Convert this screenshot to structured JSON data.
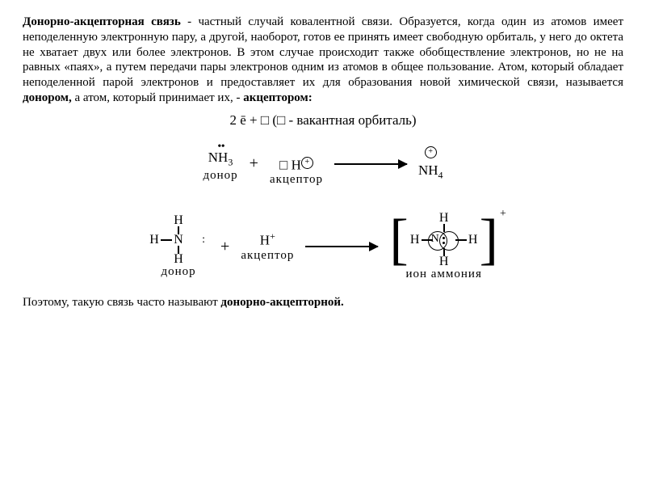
{
  "text": {
    "term": "Донорно-акцепторная связь",
    "para1": " - частный случай ковалентной связи. Образуется, когда один из атомов имеет неподеленную электронную пару, а другой, наоборот, готов ее принять имеет свободную орбиталь, у него до октета не хватает двух или более электронов. В этом случае происходит также обобществление электронов, но не на равных «паях», а путем передачи пары электронов одним из атомов в общее пользование. Атом, который обладает неподеленной парой электронов и предоставляет их для образования новой химической связи, называется ",
    "donor_word": "донором,",
    "para1b": " а атом, который принимает их, - ",
    "acceptor_word": "акцептором:",
    "footer_a": "Поэтому, такую связь часто называют ",
    "footer_b": "донорно-акцепторной."
  },
  "diagram": {
    "topline": "2 ē + □ (□ - вакантная орбиталь)",
    "nh3_dots": "• •",
    "nh3": "NH",
    "nh3_sub": "3",
    "box": "□",
    "H": "H",
    "plus_circ": "+",
    "nh4": "NH",
    "nh4_sub": "4",
    "lbl_donor": "донор",
    "lbl_acceptor": "акцептор",
    "lbl_ion": "ион аммония",
    "N": "N",
    "Hplus": "H",
    "lonepair": ":",
    "colors": {
      "ink": "#000000",
      "bg": "#ffffff"
    },
    "font": {
      "body_size_pt": 12,
      "diagram_size_pt": 13,
      "label_size_pt": 11
    }
  }
}
